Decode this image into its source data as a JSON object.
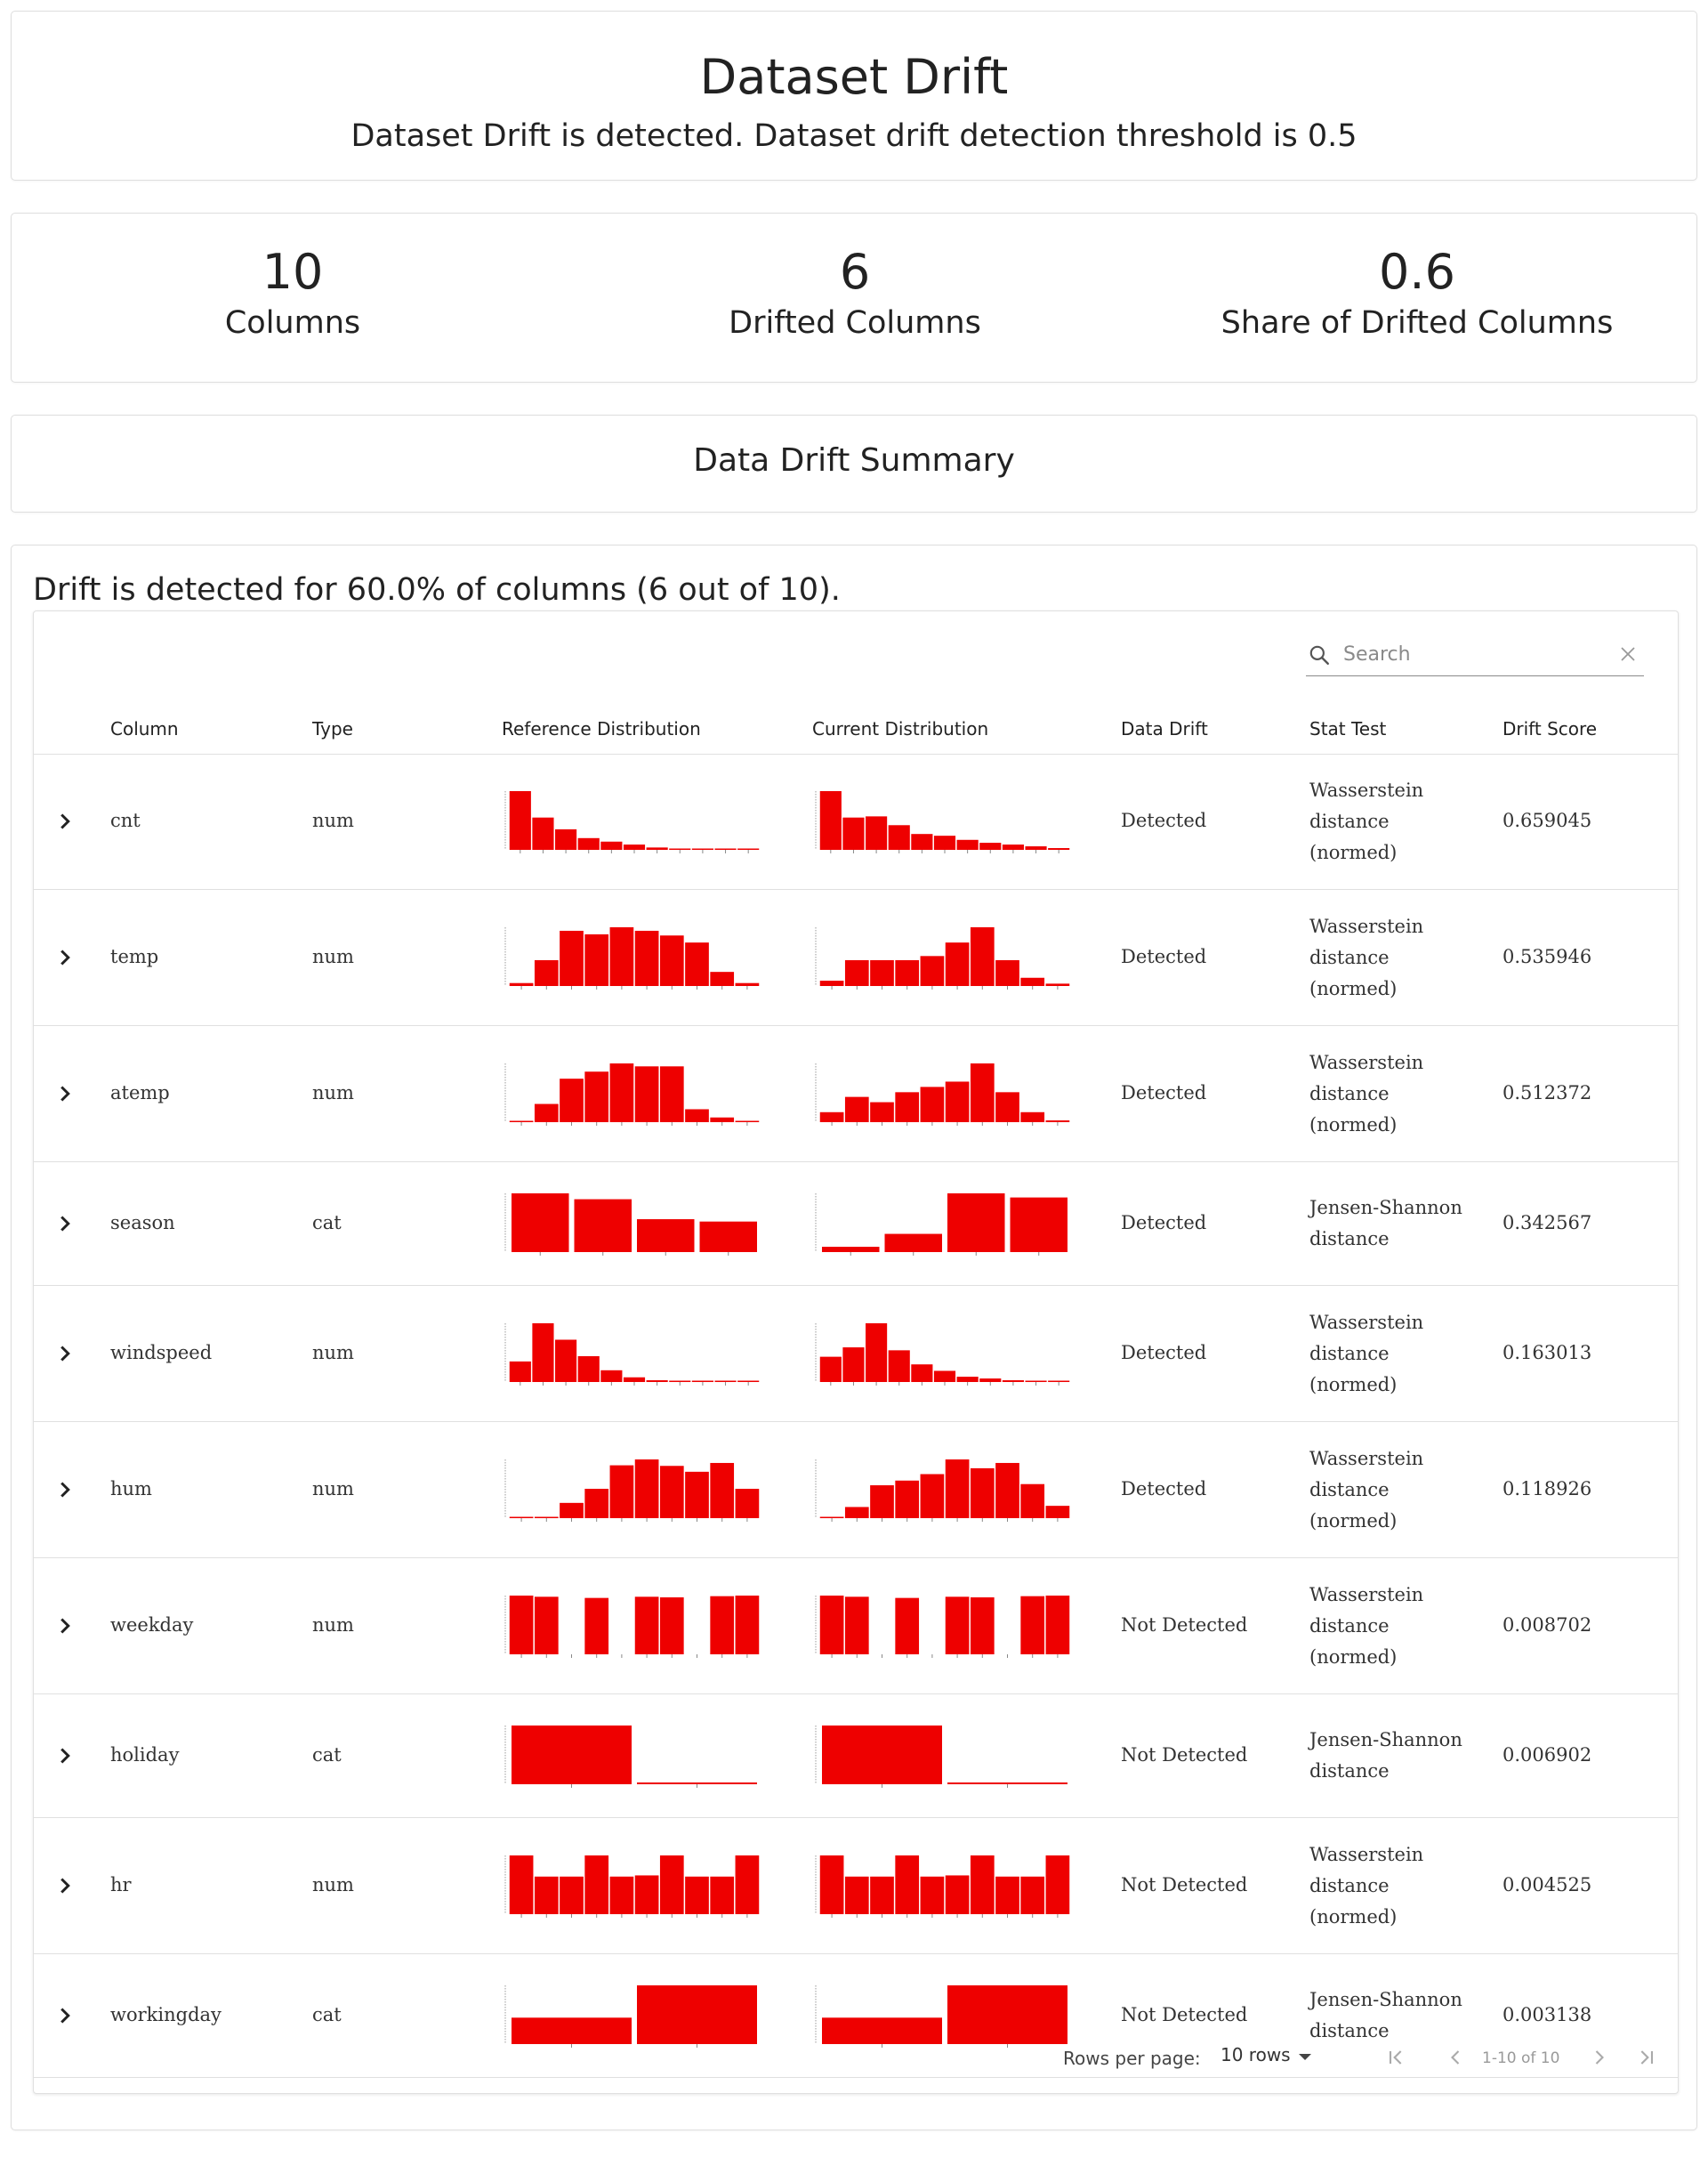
{
  "header": {
    "title": "Dataset Drift",
    "subtitle": "Dataset Drift is detected. Dataset drift detection threshold is 0.5"
  },
  "counters": [
    {
      "value": "10",
      "label": "Columns"
    },
    {
      "value": "6",
      "label": "Drifted Columns"
    },
    {
      "value": "0.6",
      "label": "Share of Drifted Columns"
    }
  ],
  "summary": {
    "title": "Data Drift Summary"
  },
  "table": {
    "heading": "Drift is detected for 60.0% of columns (6 out of 10).",
    "search_placeholder": "Search",
    "columns": [
      "Column",
      "Type",
      "Reference Distribution",
      "Current Distribution",
      "Data Drift",
      "Stat Test",
      "Drift Score"
    ],
    "accent_color": "#ee0000",
    "rows": [
      {
        "name": "cnt",
        "type": "num",
        "drift": "Detected",
        "stat": [
          "Wasserstein",
          "distance",
          "(normed)"
        ],
        "score": "0.659045",
        "ref": [
          100,
          55,
          35,
          20,
          14,
          9,
          4,
          2,
          1,
          1,
          1
        ],
        "cur": [
          100,
          55,
          57,
          42,
          27,
          24,
          17,
          12,
          9,
          6,
          3
        ]
      },
      {
        "name": "temp",
        "type": "num",
        "drift": "Detected",
        "stat": [
          "Wasserstein",
          "distance",
          "(normed)"
        ],
        "score": "0.535946",
        "ref": [
          5,
          44,
          94,
          88,
          100,
          94,
          86,
          74,
          24,
          5
        ],
        "cur": [
          9,
          44,
          44,
          44,
          51,
          74,
          100,
          44,
          14,
          4
        ]
      },
      {
        "name": "atemp",
        "type": "num",
        "drift": "Detected",
        "stat": [
          "Wasserstein",
          "distance",
          "(normed)"
        ],
        "score": "0.512372",
        "ref": [
          2,
          31,
          74,
          86,
          100,
          95,
          95,
          22,
          8,
          1
        ],
        "cur": [
          17,
          43,
          34,
          51,
          60,
          69,
          100,
          51,
          17,
          3
        ]
      },
      {
        "name": "season",
        "type": "cat",
        "drift": "Detected",
        "stat": [
          "Jensen-Shannon",
          "distance"
        ],
        "score": "0.342567",
        "ref": [
          100,
          90,
          56,
          52
        ],
        "cur": [
          9,
          31,
          100,
          93
        ]
      },
      {
        "name": "windspeed",
        "type": "num",
        "drift": "Detected",
        "stat": [
          "Wasserstein",
          "distance",
          "(normed)"
        ],
        "score": "0.163013",
        "ref": [
          35,
          100,
          72,
          44,
          20,
          8,
          3,
          1,
          1,
          1,
          1
        ],
        "cur": [
          43,
          59,
          100,
          54,
          30,
          19,
          9,
          6,
          3,
          1,
          1
        ]
      },
      {
        "name": "hum",
        "type": "num",
        "drift": "Detected",
        "stat": [
          "Wasserstein",
          "distance",
          "(normed)"
        ],
        "score": "0.118926",
        "ref": [
          1,
          2,
          26,
          50,
          90,
          100,
          89,
          79,
          94,
          50
        ],
        "cur": [
          2,
          19,
          56,
          64,
          75,
          100,
          85,
          94,
          58,
          21
        ]
      },
      {
        "name": "weekday",
        "type": "num",
        "drift": "Not Detected",
        "stat": [
          "Wasserstein",
          "distance",
          "(normed)"
        ],
        "score": "0.008702",
        "ref": [
          100,
          98,
          0,
          96,
          0,
          98,
          97,
          0,
          99,
          100
        ],
        "cur": [
          100,
          98,
          0,
          96,
          0,
          98,
          97,
          0,
          99,
          100
        ]
      },
      {
        "name": "holiday",
        "type": "cat",
        "drift": "Not Detected",
        "stat": [
          "Jensen-Shannon",
          "distance"
        ],
        "score": "0.006902",
        "ref": [
          100,
          3
        ],
        "cur": [
          100,
          3
        ]
      },
      {
        "name": "hr",
        "type": "num",
        "drift": "Not Detected",
        "stat": [
          "Wasserstein",
          "distance",
          "(normed)"
        ],
        "score": "0.004525",
        "ref": [
          100,
          64,
          64,
          100,
          64,
          66,
          100,
          64,
          64,
          100
        ],
        "cur": [
          100,
          64,
          64,
          100,
          64,
          66,
          100,
          64,
          64,
          100
        ]
      },
      {
        "name": "workingday",
        "type": "cat",
        "drift": "Not Detected",
        "stat": [
          "Jensen-Shannon",
          "distance"
        ],
        "score": "0.003138",
        "ref": [
          45,
          100
        ],
        "cur": [
          45,
          100
        ]
      }
    ]
  },
  "footer": {
    "rows_per_page_label": "Rows per page:",
    "rows_per_page_value": "10 rows",
    "page_range": "1-10 of 10"
  }
}
